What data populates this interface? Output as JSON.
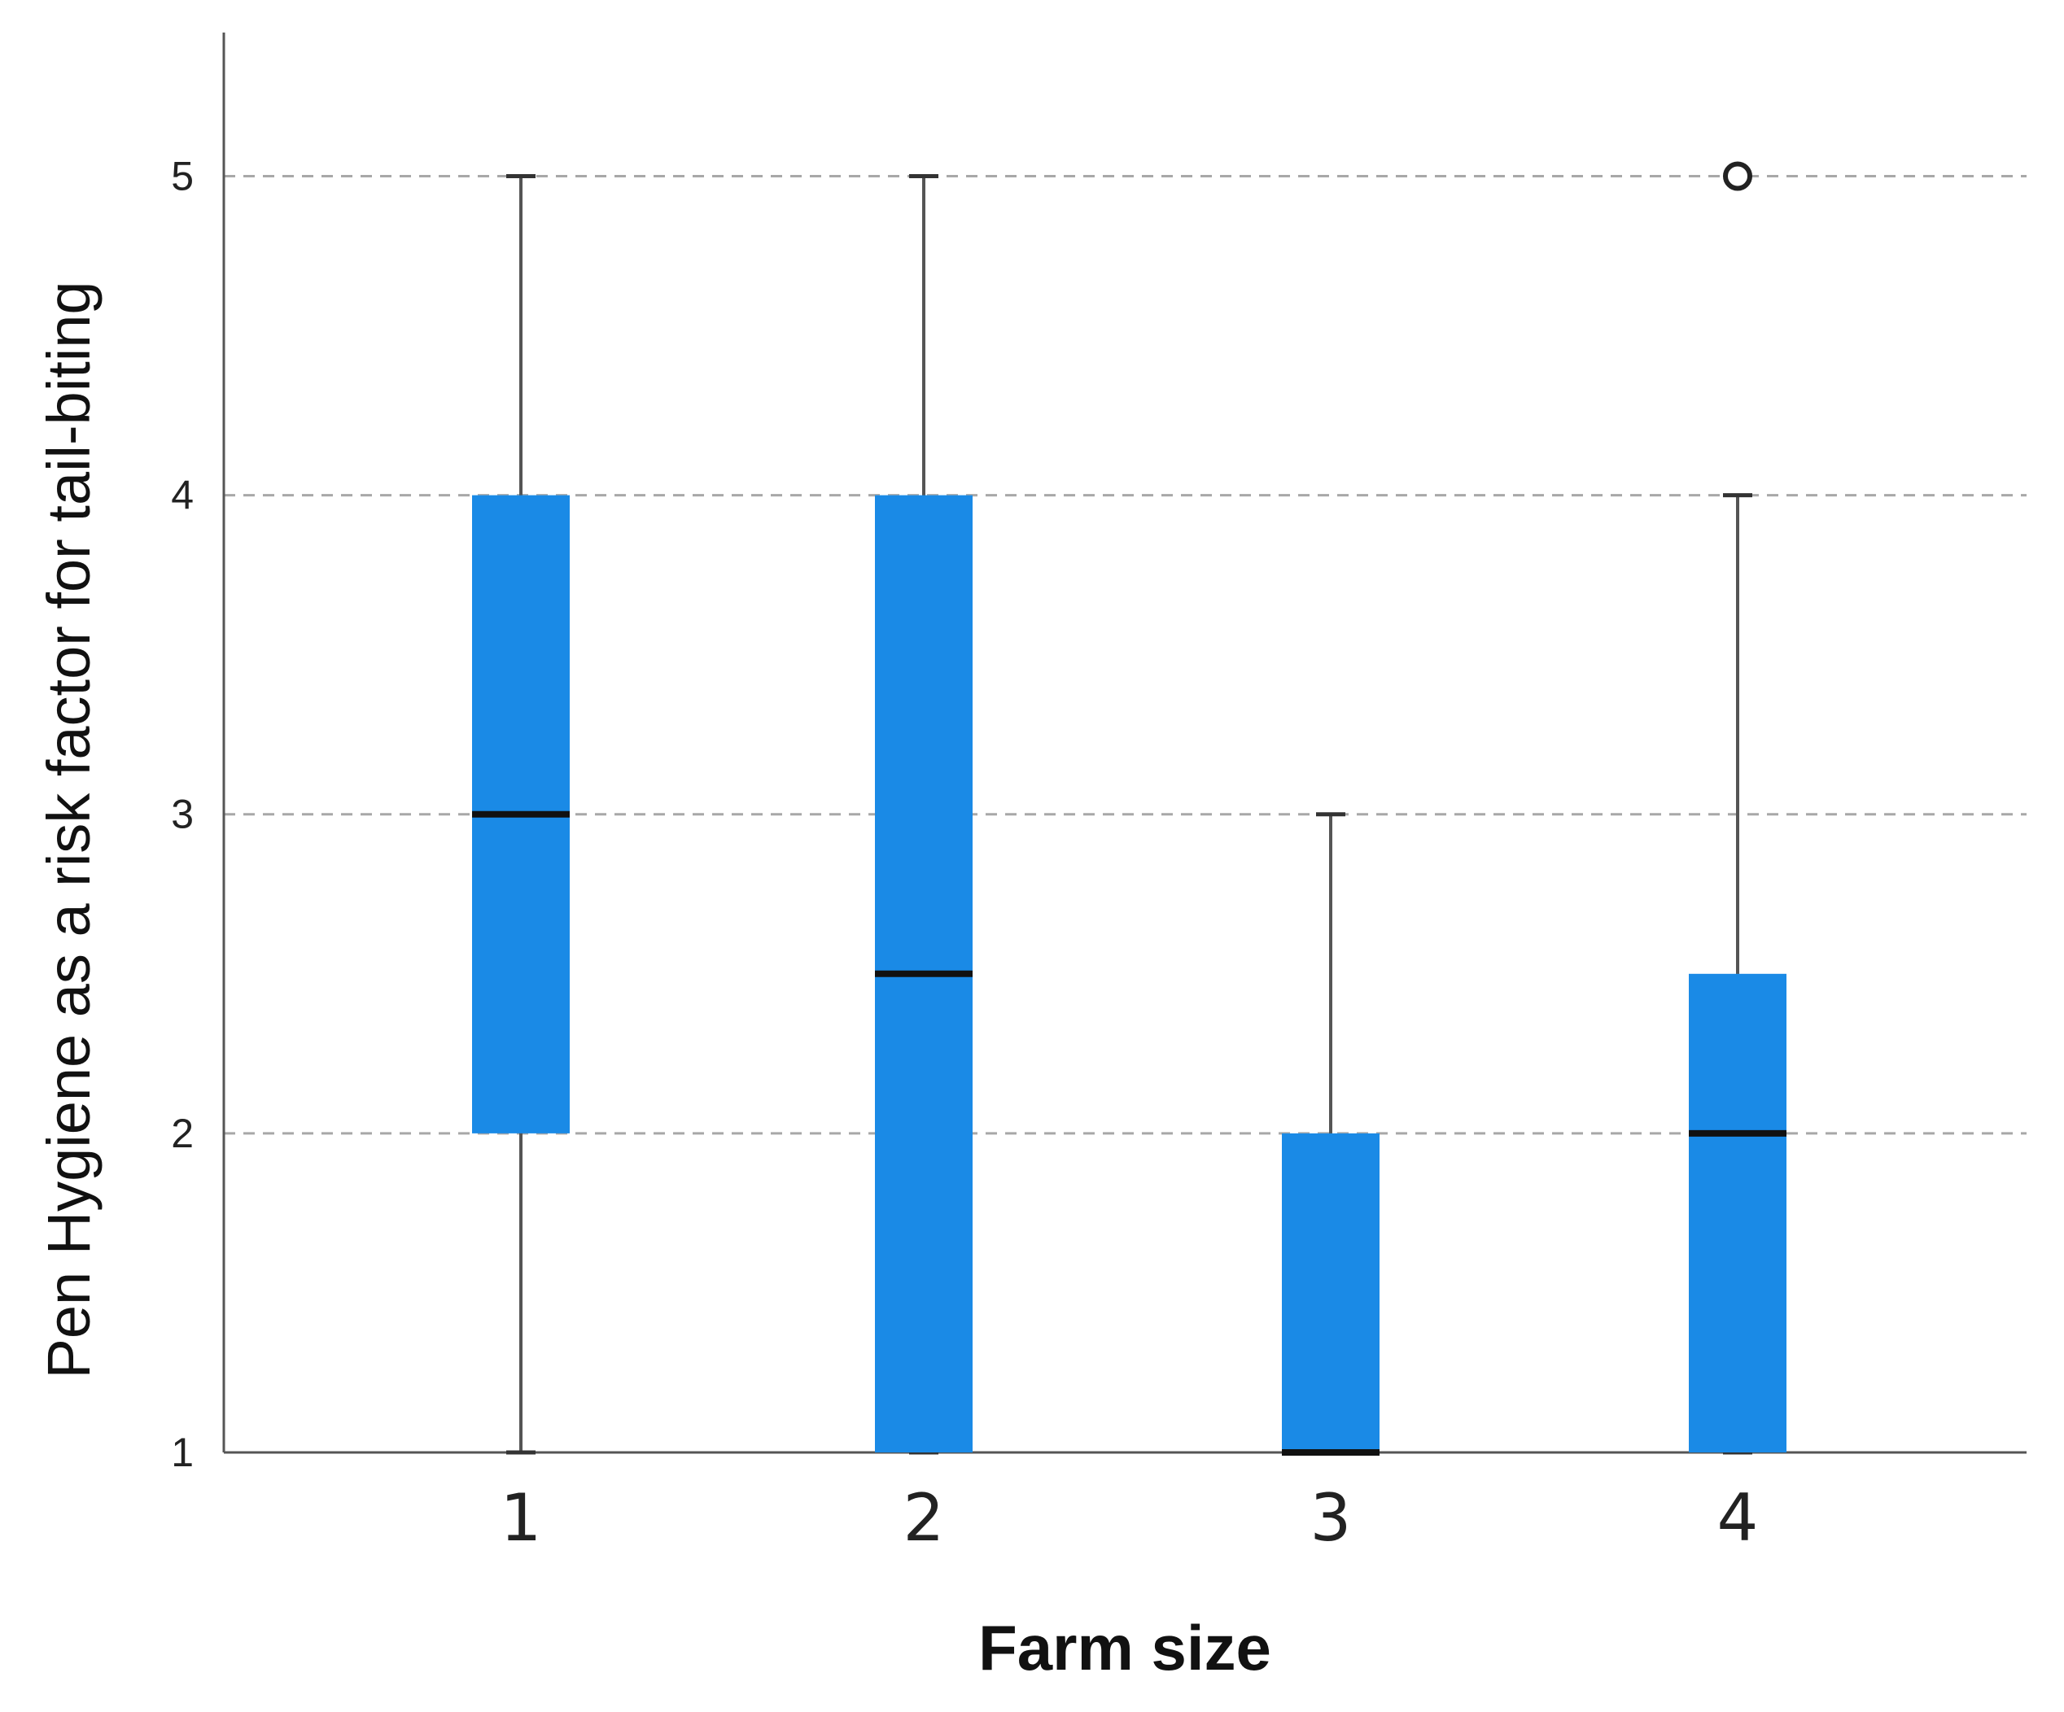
{
  "chart_data": {
    "type": "boxplot",
    "xlabel": "Farm size",
    "ylabel": "Pen Hygiene as a risk factor for tail-biting",
    "categories": [
      "1",
      "2",
      "3",
      "4"
    ],
    "ylim": [
      1,
      5.45
    ],
    "yticks": [
      1,
      2,
      3,
      4,
      5
    ],
    "grid": "horizontal dashed",
    "box_color": "#1a8ae6",
    "boxes": [
      {
        "category": "1",
        "whisker_low": 1,
        "q1": 2,
        "median": 3,
        "q3": 4,
        "whisker_high": 5,
        "outliers": []
      },
      {
        "category": "2",
        "whisker_low": 1,
        "q1": 1,
        "median": 2.5,
        "q3": 4,
        "whisker_high": 5,
        "outliers": []
      },
      {
        "category": "3",
        "whisker_low": 1,
        "q1": 1,
        "median": 1,
        "q3": 2,
        "whisker_high": 3,
        "outliers": []
      },
      {
        "category": "4",
        "whisker_low": 1,
        "q1": 1,
        "median": 2,
        "q3": 2.5,
        "whisker_high": 4,
        "outliers": [
          5
        ]
      }
    ]
  }
}
